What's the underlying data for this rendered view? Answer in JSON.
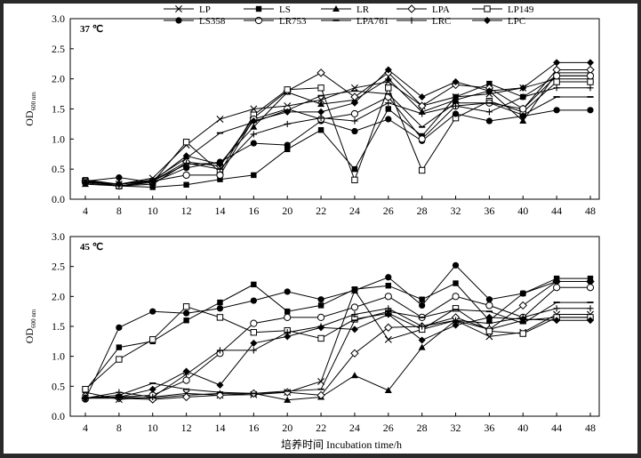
{
  "chart_data": [
    {
      "type": "line",
      "title": "37 ℃",
      "xlabel": "",
      "ylabel": "OD",
      "ylabel_sub": "600 nm",
      "categories": [
        "4",
        "8",
        "10",
        "12",
        "14",
        "16",
        "20",
        "22",
        "24",
        "26",
        "28",
        "32",
        "36",
        "40",
        "44",
        "48"
      ],
      "ylim": [
        0,
        3.0
      ],
      "yticks": [
        "0.0",
        "0.5",
        "1.0",
        "1.5",
        "2.0",
        "2.5",
        "3.0"
      ],
      "grid": false,
      "legend": "top",
      "series": [
        {
          "name": "LP",
          "marker": "x",
          "values": [
            0.3,
            0.25,
            0.35,
            0.9,
            1.33,
            1.5,
            1.55,
            1.65,
            1.85,
            1.95,
            1.55,
            1.7,
            1.75,
            1.85,
            2.0,
            2.0
          ]
        },
        {
          "name": "LS",
          "marker": "square-filled",
          "values": [
            0.32,
            0.22,
            0.2,
            0.24,
            0.33,
            0.4,
            0.83,
            1.15,
            0.5,
            1.5,
            1.05,
            1.7,
            1.92,
            1.7,
            2.05,
            2.05
          ]
        },
        {
          "name": "LR",
          "marker": "triangle-filled",
          "values": [
            0.25,
            0.22,
            0.3,
            0.58,
            0.6,
            1.2,
            1.78,
            1.58,
            1.65,
            2.0,
            1.45,
            1.65,
            1.8,
            1.3,
            2.1,
            2.1
          ]
        },
        {
          "name": "LPA",
          "marker": "diamond-open",
          "values": [
            0.3,
            0.25,
            0.3,
            0.62,
            0.55,
            1.35,
            1.8,
            2.1,
            1.7,
            2.1,
            1.55,
            1.9,
            1.85,
            1.5,
            2.15,
            2.15
          ]
        },
        {
          "name": "LP149",
          "marker": "square-open",
          "values": [
            0.3,
            0.22,
            0.28,
            0.95,
            0.45,
            1.4,
            1.82,
            1.85,
            0.32,
            1.85,
            0.48,
            1.35,
            1.63,
            1.45,
            1.95,
            1.95
          ]
        },
        {
          "name": "LS358",
          "marker": "circle-filled",
          "values": [
            0.3,
            0.36,
            0.28,
            0.52,
            0.62,
            0.93,
            0.9,
            1.3,
            1.13,
            1.33,
            0.97,
            1.42,
            1.3,
            1.38,
            1.48,
            1.48
          ]
        },
        {
          "name": "LR753",
          "marker": "circle-open",
          "values": [
            0.3,
            0.22,
            0.3,
            0.4,
            0.4,
            1.33,
            1.5,
            1.33,
            1.42,
            1.7,
            1.0,
            1.55,
            1.6,
            1.5,
            2.05,
            2.05
          ]
        },
        {
          "name": "LPA761",
          "marker": "dash",
          "values": [
            0.32,
            0.25,
            0.32,
            0.68,
            1.1,
            1.28,
            1.48,
            1.72,
            1.8,
            1.75,
            1.2,
            1.6,
            1.6,
            1.4,
            1.7,
            1.7
          ]
        },
        {
          "name": "LRC",
          "marker": "plus",
          "values": [
            0.27,
            0.22,
            0.25,
            0.6,
            0.5,
            1.08,
            1.25,
            1.35,
            1.3,
            1.6,
            1.42,
            1.55,
            1.45,
            1.7,
            1.85,
            1.85
          ]
        },
        {
          "name": "LPC",
          "marker": "diamond-filled",
          "values": [
            0.28,
            0.25,
            0.3,
            0.72,
            0.58,
            1.3,
            1.45,
            1.45,
            1.6,
            2.15,
            1.7,
            1.95,
            1.8,
            1.85,
            2.27,
            2.27
          ]
        }
      ]
    },
    {
      "type": "line",
      "title": "45 ℃",
      "xlabel": "培养时间 Incubation time/h",
      "ylabel": "OD",
      "ylabel_sub": "600 nm",
      "categories": [
        "4",
        "8",
        "10",
        "12",
        "14",
        "16",
        "20",
        "22",
        "24",
        "26",
        "28",
        "32",
        "36",
        "40",
        "44",
        "48"
      ],
      "ylim": [
        0,
        3.0
      ],
      "yticks": [
        "0.0",
        "0.5",
        "1.0",
        "1.5",
        "2.0",
        "2.5",
        "3.0"
      ],
      "grid": false,
      "legend": "top",
      "series": [
        {
          "name": "LP",
          "marker": "x",
          "values": [
            0.4,
            0.28,
            0.32,
            0.38,
            0.35,
            0.36,
            0.4,
            0.58,
            2.1,
            1.28,
            1.45,
            1.6,
            1.33,
            1.4,
            1.7,
            1.7
          ]
        },
        {
          "name": "LS",
          "marker": "square-filled",
          "values": [
            0.43,
            1.15,
            1.25,
            1.6,
            1.9,
            2.2,
            1.75,
            1.85,
            2.12,
            2.18,
            1.95,
            2.22,
            1.6,
            2.05,
            2.3,
            2.3
          ]
        },
        {
          "name": "LR",
          "marker": "triangle-filled",
          "values": [
            0.3,
            0.32,
            0.3,
            0.35,
            0.38,
            0.38,
            0.27,
            0.32,
            0.68,
            0.43,
            1.15,
            1.6,
            1.45,
            1.6,
            1.65,
            1.65
          ]
        },
        {
          "name": "LPA",
          "marker": "diamond-open",
          "values": [
            0.3,
            0.3,
            0.28,
            0.32,
            0.35,
            0.38,
            0.4,
            0.35,
            1.05,
            1.48,
            1.5,
            1.65,
            1.45,
            1.85,
            2.25,
            2.25
          ]
        },
        {
          "name": "LP149",
          "marker": "square-open",
          "values": [
            0.45,
            0.95,
            1.28,
            1.83,
            1.65,
            1.4,
            1.43,
            1.3,
            1.62,
            1.72,
            1.45,
            1.8,
            1.42,
            1.38,
            1.65,
            1.65
          ]
        },
        {
          "name": "LS358",
          "marker": "circle-filled",
          "values": [
            0.28,
            1.48,
            1.75,
            1.72,
            1.8,
            1.93,
            2.08,
            1.95,
            2.1,
            2.32,
            1.85,
            2.52,
            1.95,
            2.05,
            2.25,
            2.25
          ]
        },
        {
          "name": "LR753",
          "marker": "circle-open",
          "values": [
            0.3,
            0.32,
            0.35,
            0.6,
            1.05,
            1.55,
            1.65,
            1.65,
            1.82,
            2.0,
            1.65,
            2.0,
            1.85,
            1.65,
            2.15,
            2.15
          ]
        },
        {
          "name": "LPA761",
          "marker": "dash",
          "values": [
            0.3,
            0.35,
            0.55,
            0.45,
            0.4,
            0.38,
            0.42,
            0.45,
            1.6,
            1.75,
            1.65,
            1.78,
            1.75,
            1.55,
            1.9,
            1.9
          ]
        },
        {
          "name": "LRC",
          "marker": "plus",
          "values": [
            0.3,
            0.4,
            0.32,
            0.7,
            1.1,
            1.1,
            1.4,
            1.5,
            1.7,
            1.8,
            1.5,
            1.6,
            1.55,
            1.65,
            1.8,
            1.8
          ]
        },
        {
          "name": "LPC",
          "marker": "diamond-filled",
          "values": [
            0.3,
            0.32,
            0.45,
            0.75,
            0.52,
            1.22,
            1.33,
            1.48,
            1.45,
            1.7,
            1.27,
            1.52,
            1.65,
            1.62,
            1.6,
            1.6
          ]
        }
      ]
    }
  ]
}
